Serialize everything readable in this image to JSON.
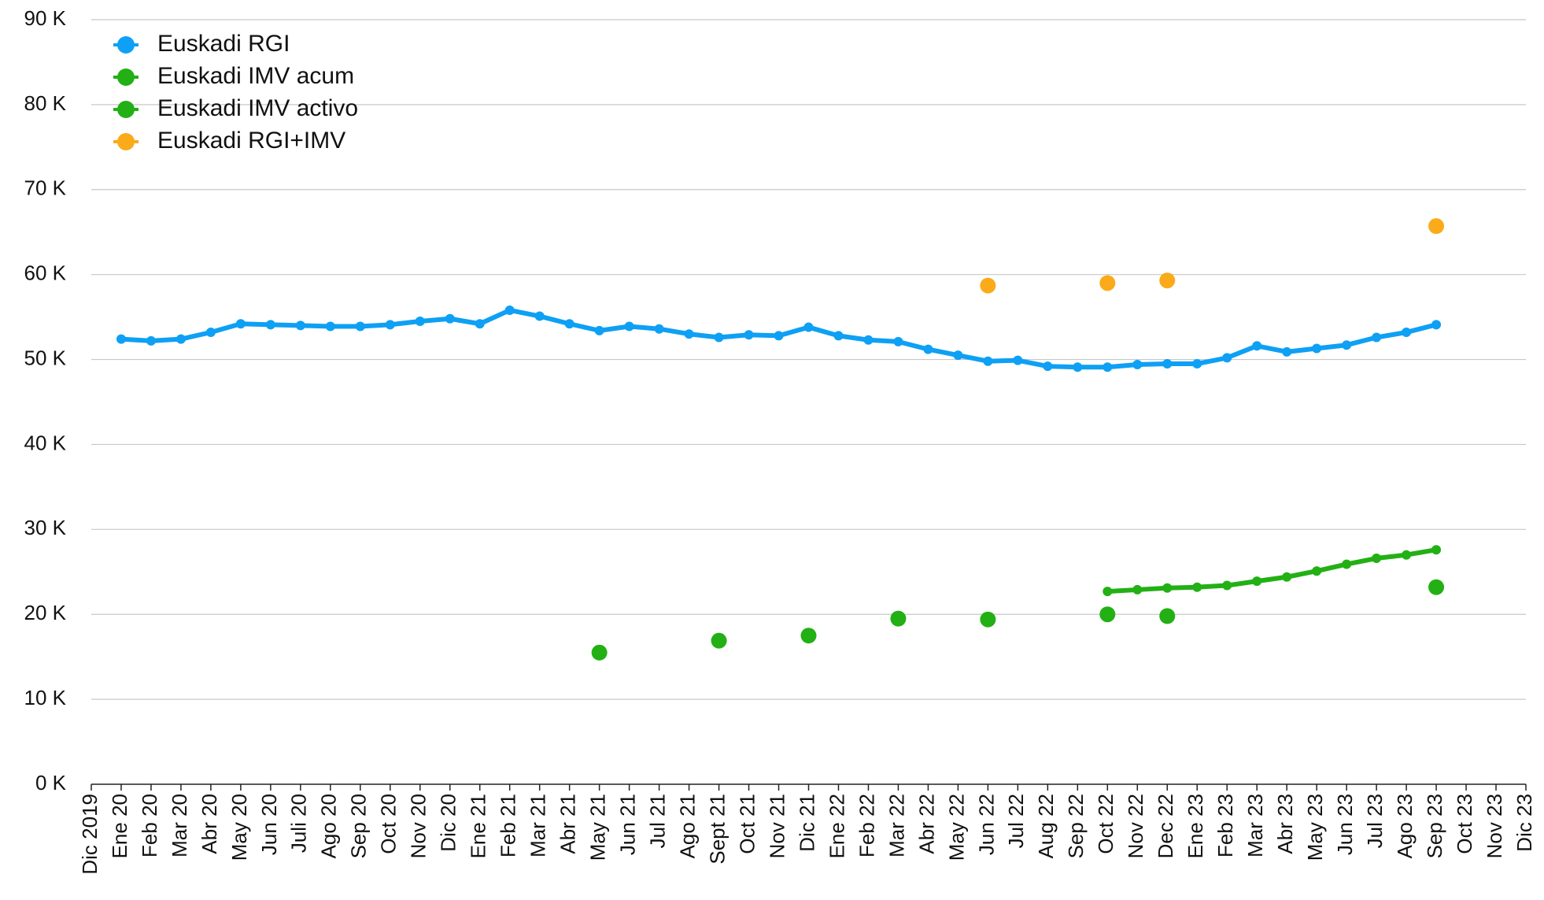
{
  "chart_data": {
    "type": "line",
    "categories": [
      "Dic 2019",
      "Ene 20",
      "Feb 20",
      "Mar 20",
      "Abr 20",
      "May 20",
      "Jun 20",
      "Juli 20",
      "Ago 20",
      "Sep 20",
      "Oct 20",
      "Nov 20",
      "Dic 20",
      "Ene 21",
      "Feb 21",
      "Mar 21",
      "Abr 21",
      "May 21",
      "Jun 21",
      "Jul 21",
      "Ago 21",
      "Sept 21",
      "Oct 21",
      "Nov 21",
      "Dic 21",
      "Ene 22",
      "Feb 22",
      "Mar 22",
      "Abr 22",
      "May 22",
      "Jun 22",
      "Jul 22",
      "Aug 22",
      "Sep 22",
      "Oct 22",
      "Nov 22",
      "Dec 22",
      "Ene 23",
      "Feb 23",
      "Mar 23",
      "Abr 23",
      "May 23",
      "Jun 23",
      "Jul 23",
      "Ago 23",
      "Sep 23",
      "Oct 23",
      "Nov 23",
      "Dic 23"
    ],
    "series": [
      {
        "name": "Euskadi RGI",
        "color": "#0ea0f4",
        "values": [
          null,
          52400,
          52200,
          52400,
          53200,
          54200,
          54100,
          54000,
          53900,
          53900,
          54100,
          54500,
          54800,
          54200,
          55800,
          55100,
          54200,
          53400,
          53900,
          53600,
          53000,
          52600,
          52900,
          52800,
          53800,
          52800,
          52300,
          52100,
          51200,
          50500,
          49800,
          49900,
          49200,
          49100,
          49100,
          49400,
          49500,
          49500,
          50200,
          51600,
          50900,
          51300,
          51700,
          52600,
          53200,
          54100,
          null,
          null,
          null
        ]
      },
      {
        "name": "Euskadi IMV acum",
        "color": "#22b014",
        "values": [
          null,
          null,
          null,
          null,
          null,
          null,
          null,
          null,
          null,
          null,
          null,
          null,
          null,
          null,
          null,
          null,
          null,
          null,
          null,
          null,
          null,
          null,
          null,
          null,
          null,
          null,
          null,
          null,
          null,
          null,
          null,
          null,
          null,
          null,
          22700,
          22900,
          23100,
          23200,
          23400,
          23900,
          24400,
          25100,
          25900,
          26600,
          27000,
          27600,
          null,
          null,
          null
        ]
      },
      {
        "name": "Euskadi IMV activo",
        "color": "#22b014",
        "values": [
          null,
          null,
          null,
          null,
          null,
          null,
          null,
          null,
          null,
          null,
          null,
          null,
          null,
          null,
          null,
          null,
          null,
          15500,
          null,
          null,
          null,
          16900,
          null,
          null,
          17500,
          null,
          null,
          19500,
          null,
          null,
          19400,
          null,
          null,
          null,
          20000,
          null,
          19800,
          null,
          null,
          null,
          null,
          null,
          null,
          null,
          null,
          23200,
          null,
          null,
          null
        ]
      },
      {
        "name": "Euskadi RGI+IMV",
        "color": "#fbaa1a",
        "values": [
          null,
          null,
          null,
          null,
          null,
          null,
          null,
          null,
          null,
          null,
          null,
          null,
          null,
          null,
          null,
          null,
          null,
          null,
          null,
          null,
          null,
          null,
          null,
          null,
          null,
          null,
          null,
          null,
          null,
          null,
          58700,
          null,
          null,
          null,
          59000,
          null,
          59300,
          null,
          null,
          null,
          null,
          null,
          null,
          null,
          null,
          65700,
          null,
          null,
          null
        ]
      }
    ],
    "ylim": [
      0,
      90000
    ],
    "yticks": [
      {
        "value": 0,
        "label": "0 K"
      },
      {
        "value": 10000,
        "label": "10 K"
      },
      {
        "value": 20000,
        "label": "20 K"
      },
      {
        "value": 30000,
        "label": "30 K"
      },
      {
        "value": 40000,
        "label": "40 K"
      },
      {
        "value": 50000,
        "label": "50 K"
      },
      {
        "value": 60000,
        "label": "60 K"
      },
      {
        "value": 70000,
        "label": "70 K"
      },
      {
        "value": 80000,
        "label": "80 K"
      },
      {
        "value": 90000,
        "label": "90 K"
      }
    ],
    "grid": true,
    "legend": "top-left"
  }
}
